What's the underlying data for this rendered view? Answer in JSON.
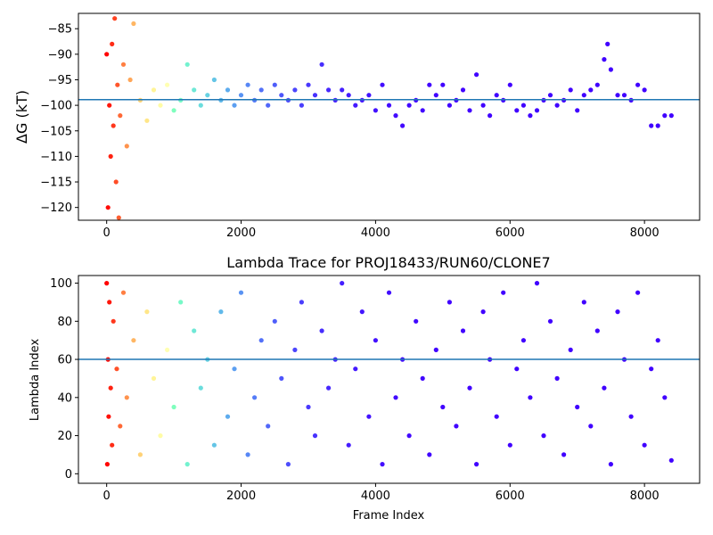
{
  "chart_data": [
    {
      "type": "scatter",
      "title": "",
      "xlabel": "",
      "ylabel": "ΔG (kT)",
      "xlim": [
        -420,
        8820
      ],
      "ylim": [
        -122.5,
        -82
      ],
      "xticks": [
        0,
        2000,
        4000,
        6000,
        8000
      ],
      "yticks": [
        -120,
        -115,
        -110,
        -105,
        -100,
        -95,
        -90,
        -85
      ],
      "hline": -98.9,
      "hline_color": "#1f77b4",
      "colormap": "rainbow",
      "series": [
        {
          "x": [
            0,
            20,
            40,
            60,
            80,
            100,
            120,
            140,
            160,
            180,
            200,
            250,
            300,
            350,
            400,
            500,
            600,
            700,
            800,
            900,
            1000,
            1100,
            1200,
            1300,
            1400,
            1500,
            1600,
            1700,
            1800,
            1900,
            2000,
            2100,
            2200,
            2300,
            2400,
            2500,
            2600,
            2700,
            2800,
            2900,
            3000,
            3100,
            3200,
            3300,
            3400,
            3500,
            3600,
            3700,
            3800,
            3900,
            4000,
            4100,
            4200,
            4300,
            4400,
            4500,
            4600,
            4700,
            4800,
            4900,
            5000,
            5100,
            5200,
            5300,
            5400,
            5500,
            5600,
            5700,
            5800,
            5900,
            6000,
            6100,
            6200,
            6300,
            6400,
            6500,
            6600,
            6700,
            6800,
            6900,
            7000,
            7100,
            7200,
            7300,
            7400,
            7450,
            7500,
            7600,
            7700,
            7800,
            7900,
            8000,
            8100,
            8200,
            8300,
            8400
          ],
          "y": [
            -90,
            -120,
            -100,
            -110,
            -88,
            -104,
            -83,
            -115,
            -96,
            -122,
            -102,
            -92,
            -108,
            -95,
            -84,
            -99,
            -103,
            -97,
            -100,
            -96,
            -101,
            -99,
            -92,
            -97,
            -100,
            -98,
            -95,
            -99,
            -97,
            -100,
            -98,
            -96,
            -99,
            -97,
            -100,
            -96,
            -98,
            -99,
            -97,
            -100,
            -96,
            -98,
            -92,
            -97,
            -99,
            -97,
            -98,
            -100,
            -99,
            -98,
            -101,
            -96,
            -100,
            -102,
            -104,
            -100,
            -99,
            -101,
            -96,
            -98,
            -96,
            -100,
            -99,
            -97,
            -101,
            -94,
            -100,
            -102,
            -98,
            -99,
            -96,
            -101,
            -100,
            -102,
            -101,
            -99,
            -98,
            -100,
            -99,
            -97,
            -101,
            -98,
            -97,
            -96,
            -91,
            -88,
            -93,
            -98,
            -98,
            -99,
            -96,
            -97,
            -104,
            -104,
            -102,
            -102
          ]
        }
      ]
    },
    {
      "type": "scatter",
      "title": "Lambda Trace for PROJ18433/RUN60/CLONE7",
      "xlabel": "Frame Index",
      "ylabel": "Lambda Index",
      "xlim": [
        -420,
        8820
      ],
      "ylim": [
        -5,
        104
      ],
      "xticks": [
        0,
        2000,
        4000,
        6000,
        8000
      ],
      "yticks": [
        0,
        20,
        40,
        60,
        80,
        100
      ],
      "hline": 60,
      "hline_color": "#1f77b4",
      "colormap": "rainbow",
      "series": [
        {
          "x": [
            0,
            10,
            20,
            30,
            40,
            60,
            80,
            100,
            150,
            200,
            250,
            300,
            400,
            500,
            600,
            700,
            800,
            900,
            1000,
            1100,
            1200,
            1300,
            1400,
            1500,
            1600,
            1700,
            1800,
            1900,
            2000,
            2100,
            2200,
            2300,
            2400,
            2500,
            2600,
            2700,
            2800,
            2900,
            3000,
            3100,
            3200,
            3300,
            3400,
            3500,
            3600,
            3700,
            3800,
            3900,
            4000,
            4100,
            4200,
            4300,
            4400,
            4500,
            4600,
            4700,
            4800,
            4900,
            5000,
            5100,
            5200,
            5300,
            5400,
            5500,
            5600,
            5700,
            5800,
            5900,
            6000,
            6100,
            6200,
            6300,
            6400,
            6500,
            6600,
            6700,
            6800,
            6900,
            7000,
            7100,
            7200,
            7300,
            7400,
            7500,
            7600,
            7700,
            7800,
            7900,
            8000,
            8100,
            8200,
            8300,
            8400
          ],
          "y": [
            100,
            5,
            60,
            30,
            90,
            45,
            15,
            80,
            55,
            25,
            95,
            40,
            70,
            10,
            85,
            50,
            20,
            65,
            35,
            90,
            5,
            75,
            45,
            60,
            15,
            85,
            30,
            55,
            95,
            10,
            40,
            70,
            25,
            80,
            50,
            5,
            65,
            90,
            35,
            20,
            75,
            45,
            60,
            100,
            15,
            55,
            85,
            30,
            70,
            5,
            95,
            40,
            60,
            20,
            80,
            50,
            10,
            65,
            35,
            90,
            25,
            75,
            45,
            5,
            85,
            60,
            30,
            95,
            15,
            55,
            70,
            40,
            100,
            20,
            80,
            50,
            10,
            65,
            35,
            90,
            25,
            75,
            45,
            5,
            85,
            60,
            30,
            95,
            15,
            55,
            70,
            40,
            7
          ]
        }
      ]
    }
  ]
}
